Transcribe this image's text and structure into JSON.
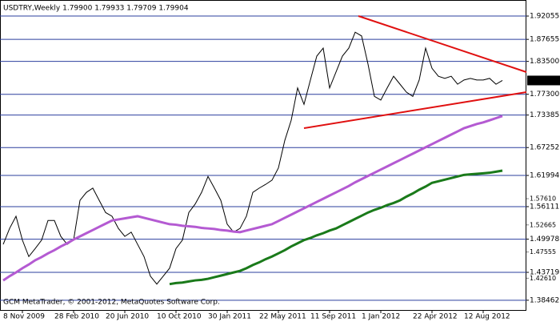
{
  "chart_data": {
    "type": "line",
    "title": "USDTRY,Weekly  1.79900 1.79933 1.79709 1.79904",
    "footer": "GCM MetaTrader, © 2001-2012, MetaQuotes Software Corp.",
    "categories": [
      null,
      null,
      null,
      "8 Nov 2009",
      null,
      null,
      null,
      null,
      null,
      null,
      null,
      "28 Feb 2010",
      null,
      null,
      null,
      null,
      null,
      null,
      null,
      "20 Jun 2010",
      null,
      null,
      null,
      null,
      null,
      null,
      null,
      "10 Oct 2010",
      null,
      null,
      null,
      null,
      null,
      null,
      null,
      "30 Jan 2011",
      null,
      null,
      null,
      null,
      null,
      null,
      null,
      "22 May 2011",
      null,
      null,
      null,
      null,
      null,
      null,
      null,
      "11 Sep 2011",
      null,
      null,
      null,
      null,
      null,
      null,
      null,
      "1 Jan 2012",
      null,
      null,
      null,
      null,
      null,
      null,
      null,
      "22 Apr 2012",
      null,
      null,
      null,
      null,
      null,
      null,
      null,
      "12 Aug 2012",
      null,
      null,
      null
    ],
    "series": [
      {
        "color": "#000000",
        "values": [
          1.49,
          1.52,
          1.543,
          1.498,
          1.467,
          1.482,
          1.498,
          1.535,
          1.535,
          1.505,
          1.49,
          1.498,
          1.573,
          1.588,
          1.596,
          1.573,
          1.55,
          1.543,
          1.52,
          1.505,
          1.513,
          1.49,
          1.467,
          1.43,
          1.415,
          1.43,
          1.445,
          1.482,
          1.498,
          1.55,
          1.566,
          1.588,
          1.618,
          1.596,
          1.573,
          1.528,
          1.513,
          1.52,
          1.543,
          1.588,
          1.596,
          1.603,
          1.611,
          1.634,
          1.686,
          1.724,
          1.785,
          1.754,
          1.8,
          1.845,
          1.86,
          1.785,
          1.815,
          1.845,
          1.86,
          1.89,
          1.883,
          1.83,
          1.769,
          1.762,
          1.785,
          1.807,
          1.792,
          1.777,
          1.769,
          1.8,
          1.86,
          1.822,
          1.807,
          1.803,
          1.807,
          1.792,
          1.8,
          1.803,
          1.8,
          1.8,
          1.803,
          1.792,
          1.799
        ]
      },
      {
        "color": "#b45ad2",
        "values": [
          1.422,
          1.43,
          1.437,
          1.445,
          1.452,
          1.46,
          1.466,
          1.473,
          1.479,
          1.486,
          1.492,
          1.499,
          1.505,
          1.511,
          1.517,
          1.523,
          1.529,
          1.535,
          1.537,
          1.539,
          1.541,
          1.543,
          1.54,
          1.537,
          1.534,
          1.531,
          1.528,
          1.527,
          1.525,
          1.524,
          1.523,
          1.521,
          1.52,
          1.519,
          1.517,
          1.516,
          1.514,
          1.513,
          1.516,
          1.519,
          1.522,
          1.525,
          1.528,
          1.534,
          1.54,
          1.546,
          1.552,
          1.558,
          1.564,
          1.57,
          1.576,
          1.582,
          1.588,
          1.594,
          1.6,
          1.607,
          1.613,
          1.619,
          1.625,
          1.631,
          1.637,
          1.643,
          1.649,
          1.655,
          1.661,
          1.667,
          1.673,
          1.679,
          1.685,
          1.691,
          1.697,
          1.703,
          1.709,
          1.713,
          1.717,
          1.72,
          1.724,
          1.728,
          1.732
        ]
      },
      {
        "color": "#1a7a1a",
        "values": [
          null,
          null,
          null,
          null,
          null,
          null,
          null,
          null,
          null,
          null,
          null,
          null,
          null,
          null,
          null,
          null,
          null,
          null,
          null,
          null,
          null,
          null,
          null,
          null,
          null,
          null,
          1.415,
          1.417,
          1.418,
          1.42,
          1.422,
          1.423,
          1.425,
          1.428,
          1.431,
          1.434,
          1.437,
          1.44,
          1.445,
          1.451,
          1.456,
          1.462,
          1.467,
          1.473,
          1.479,
          1.486,
          1.492,
          1.498,
          1.502,
          1.507,
          1.511,
          1.516,
          1.52,
          1.526,
          1.532,
          1.538,
          1.544,
          1.55,
          1.555,
          1.559,
          1.564,
          1.568,
          1.573,
          1.58,
          1.586,
          1.593,
          1.599,
          1.606,
          1.609,
          1.612,
          1.615,
          1.618,
          1.621,
          1.622,
          1.623,
          1.624,
          1.625,
          1.627,
          1.629
        ]
      }
    ],
    "ylim": [
      1.3647,
      1.9508
    ],
    "yticks": [
      1.92055,
      1.87655,
      {
        "value": 1.835,
        "label": "1.83500"
      },
      {
        "value": 1.773,
        "label": "1.77300"
      },
      1.73385,
      1.67252,
      1.61994,
      1.56111,
      1.49978,
      1.43719,
      1.38462
    ],
    "minor_yticks": [
      {
        "value": 1.5761,
        "label": "1.57610"
      },
      1.52665,
      1.47555,
      {
        "value": 1.4261,
        "label": "1.42610"
      }
    ],
    "current_price": 1.79904,
    "grid": true,
    "grid_color": "#2b3f9e"
  }
}
